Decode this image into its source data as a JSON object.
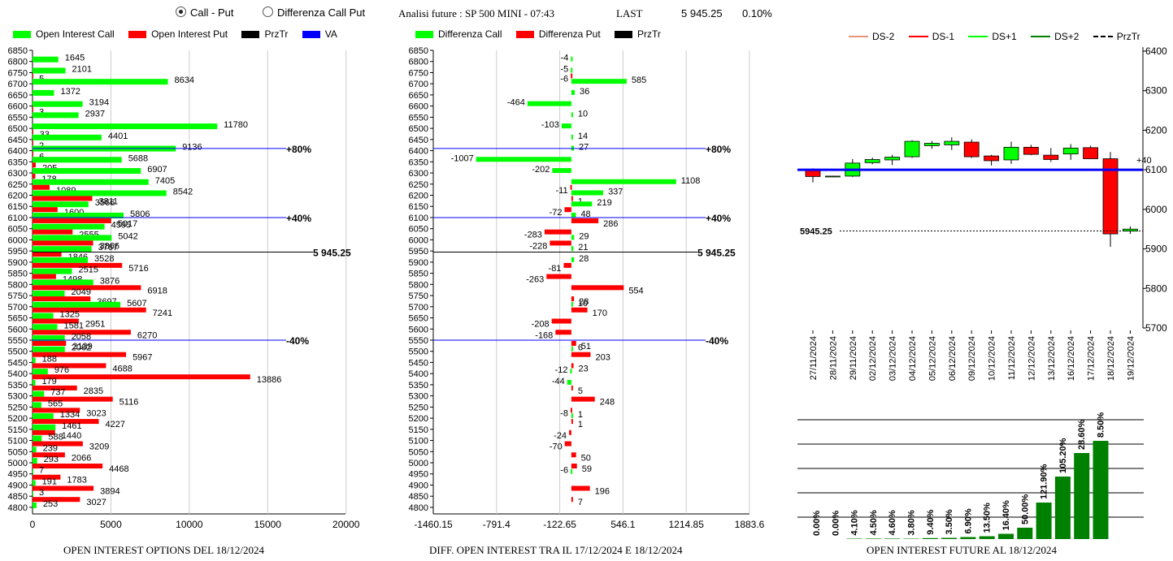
{
  "header": {
    "radio_call_put": "Call - Put",
    "radio_diff": "Differenza Call Put",
    "analisi": "Analisi future : SP 500 MINI - 07:43",
    "last_label": "LAST",
    "last_value": "5 945.25",
    "last_pct": "0.10%"
  },
  "colors": {
    "green": "#00ff00",
    "red": "#ff0000",
    "black": "#000000",
    "blue": "#0000ff",
    "darkgreen": "#008000",
    "orange": "#e9967a"
  },
  "chart_data": [
    {
      "type": "bar",
      "orientation": "horizontal",
      "title": "OPEN INTEREST OPTIONS DEL 18/12/2024",
      "legend": [
        "Open Interest Call",
        "Open Interest Put",
        "PrzTr",
        "VA"
      ],
      "strikes": [
        6850,
        6800,
        6750,
        6700,
        6650,
        6600,
        6550,
        6500,
        6450,
        6400,
        6350,
        6300,
        6250,
        6200,
        6150,
        6100,
        6050,
        6000,
        5950,
        5900,
        5850,
        5800,
        5750,
        5700,
        5650,
        5600,
        5550,
        5500,
        5450,
        5400,
        5350,
        5300,
        5250,
        5200,
        5150,
        5100,
        5050,
        5000,
        4950,
        4900,
        4850,
        4800
      ],
      "series": [
        {
          "name": "Open Interest Call",
          "values": [
            null,
            1645,
            2101,
            8634,
            1372,
            3194,
            2937,
            11780,
            4401,
            9136,
            5688,
            6907,
            7405,
            8542,
            3566,
            5806,
            4595,
            5042,
            3767,
            3528,
            2515,
            3876,
            2049,
            5607,
            1325,
            1581,
            2058,
            2062,
            188,
            976,
            179,
            737,
            565,
            1334,
            1461,
            588,
            239,
            293,
            7,
            191,
            3,
            253
          ]
        },
        {
          "name": "Open Interest Put",
          "values": [
            null,
            null,
            5,
            null,
            null,
            3,
            null,
            33,
            2,
            6,
            205,
            178,
            1089,
            3811,
            1600,
            5017,
            2555,
            3866,
            1846,
            5716,
            1498,
            6918,
            3697,
            7241,
            2951,
            6270,
            2139,
            5967,
            4688,
            13886,
            2835,
            5116,
            3023,
            4227,
            1440,
            3209,
            2066,
            4468,
            1783,
            3894,
            3027,
            null
          ]
        }
      ],
      "x_ticks": [
        "0",
        "5000",
        "10000",
        "15000",
        "20000"
      ],
      "xlim": [
        0,
        21000
      ],
      "price_line": {
        "label": "5 945.25",
        "value": 5945.25
      },
      "va_lines": [
        {
          "label": "+80%",
          "strike": 6410
        },
        {
          "label": "+40%",
          "strike": 6100
        },
        {
          "label": "-40%",
          "strike": 5550
        }
      ]
    },
    {
      "type": "bar",
      "orientation": "horizontal",
      "title": "DIFF. OPEN INTEREST TRA IL 17/12/2024 E 18/12/2024",
      "legend": [
        "Differenza Call",
        "Differenza Put",
        "PrzTr"
      ],
      "strikes": [
        6850,
        6800,
        6750,
        6700,
        6650,
        6600,
        6550,
        6500,
        6450,
        6400,
        6350,
        6300,
        6250,
        6200,
        6150,
        6100,
        6050,
        6000,
        5950,
        5900,
        5850,
        5800,
        5750,
        5700,
        5650,
        5600,
        5550,
        5500,
        5450,
        5400,
        5350,
        5300,
        5250,
        5200,
        5150,
        5100,
        5050,
        5000,
        4950,
        4900,
        4850,
        4800
      ],
      "series": [
        {
          "name": "Differenza Call",
          "values": [
            null,
            -4,
            -5,
            585,
            36,
            -464,
            10,
            -103,
            14,
            27,
            -1007,
            -202,
            1108,
            337,
            219,
            48,
            null,
            29,
            21,
            28,
            null,
            null,
            null,
            10,
            null,
            null,
            null,
            6,
            null,
            -12,
            -44,
            null,
            null,
            1,
            null,
            null,
            null,
            null,
            -6,
            null,
            null,
            null
          ]
        },
        {
          "name": "Differenza Put",
          "values": [
            null,
            null,
            -6,
            null,
            null,
            null,
            null,
            null,
            null,
            null,
            null,
            null,
            -11,
            1,
            -72,
            286,
            -283,
            -228,
            null,
            -81,
            -263,
            554,
            28,
            170,
            -208,
            -168,
            51,
            203,
            23,
            null,
            5,
            248,
            -8,
            1,
            -24,
            -70,
            50,
            59,
            null,
            196,
            7,
            null
          ]
        }
      ],
      "x_ticks": [
        "-1460.15",
        "-791.4",
        "-122.65",
        "546.1",
        "1214.85",
        "1883.6"
      ],
      "xlim": [
        -1460.15,
        1883.6
      ],
      "price_line": {
        "label": "5 945.25",
        "value": 5945.25
      },
      "va_lines": [
        {
          "label": "+80%",
          "strike": 6410
        },
        {
          "label": "+40%",
          "strike": 6100
        },
        {
          "label": "-40%",
          "strike": 5550
        }
      ]
    },
    {
      "type": "candlestick",
      "legend": [
        "DS-2",
        "DS-1",
        "DS+1",
        "DS+2",
        "PrzTr"
      ],
      "dates": [
        "27/11/2024",
        "28/11/2024",
        "29/11/2024",
        "02/12/2024",
        "03/12/2024",
        "04/12/2024",
        "05/12/2024",
        "06/12/2024",
        "09/12/2024",
        "10/12/2024",
        "11/12/2024",
        "12/12/2024",
        "13/12/2024",
        "16/12/2024",
        "17/12/2024",
        "18/12/2024",
        "19/12/2024"
      ],
      "ohlc": [
        [
          6100,
          6104,
          6068,
          6083
        ],
        [
          6083,
          6085,
          6082,
          6084
        ],
        [
          6084,
          6127,
          6082,
          6117
        ],
        [
          6118,
          6131,
          6114,
          6126
        ],
        [
          6125,
          6138,
          6112,
          6132
        ],
        [
          6133,
          6175,
          6130,
          6172
        ],
        [
          6161,
          6173,
          6153,
          6167
        ],
        [
          6163,
          6182,
          6150,
          6172
        ],
        [
          6170,
          6177,
          6130,
          6133
        ],
        [
          6135,
          6138,
          6111,
          6123
        ],
        [
          6125,
          6171,
          6115,
          6157
        ],
        [
          6157,
          6163,
          6137,
          6139
        ],
        [
          6137,
          6155,
          6120,
          6126
        ],
        [
          6140,
          6165,
          6125,
          6155
        ],
        [
          6156,
          6161,
          6127,
          6128
        ],
        [
          6128,
          6145,
          5905,
          5938
        ],
        [
          5945,
          5957,
          5938,
          5950
        ]
      ],
      "y_ticks": [
        "6400",
        "6300",
        "6200",
        "6100",
        "6000",
        "5900",
        "5800",
        "5700"
      ],
      "ylim": [
        5700,
        6400
      ],
      "va_line": {
        "label": "+40",
        "value": 6100
      },
      "price_line": {
        "label": "5945.25",
        "value": 5945.25
      }
    },
    {
      "type": "bar",
      "title": "OPEN INTEREST FUTURE AL 18/12/2024",
      "labels": [
        "0.00%",
        "0.00%",
        "4.10%",
        "4.50%",
        "4.60%",
        "3.80%",
        "9.40%",
        "3.50%",
        "6.90%",
        "13.50%",
        "16.40%",
        "50.00%",
        "121.90%",
        "105.20%",
        "28.60%",
        "8.50%"
      ],
      "values": [
        0,
        0,
        0.5,
        0.6,
        0.6,
        0.5,
        1.2,
        1.5,
        2.5,
        3.5,
        6.5,
        14,
        45,
        77,
        106,
        121
      ]
    }
  ]
}
